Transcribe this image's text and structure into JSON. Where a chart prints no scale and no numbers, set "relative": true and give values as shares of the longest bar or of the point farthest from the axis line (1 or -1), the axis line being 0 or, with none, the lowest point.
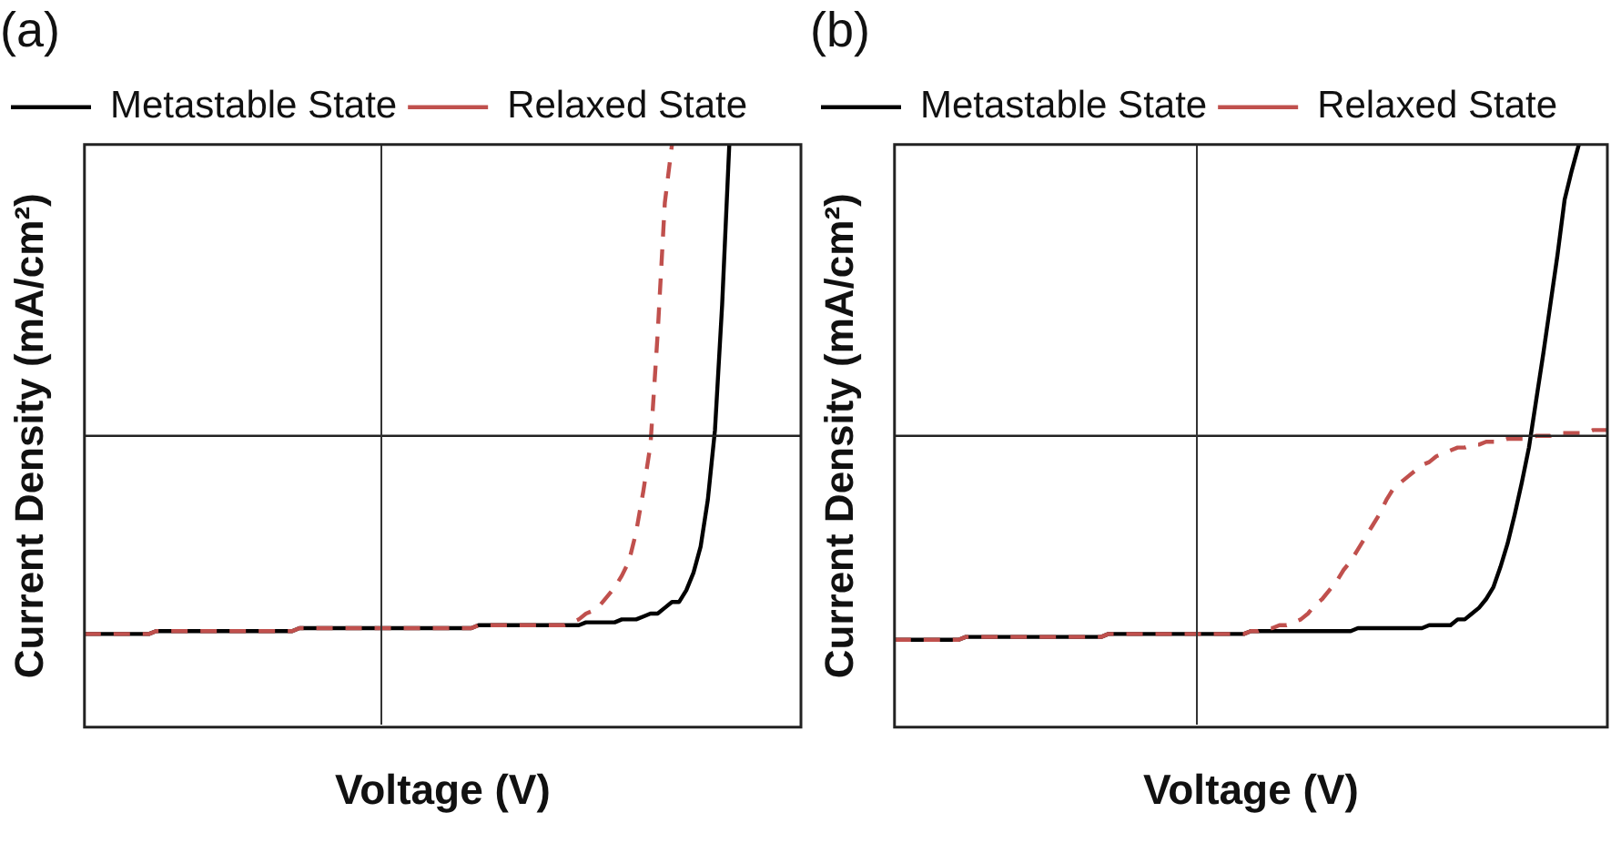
{
  "chart_data": [
    {
      "type": "line",
      "title": "(a)",
      "xlabel": "Voltage (V)",
      "ylabel": "Current Density (mA/cm²)",
      "relative": true,
      "legend": "top left",
      "grid": false,
      "ref_lines": [
        {
          "axis": "y",
          "value": 0
        }
      ],
      "categories": [
        null,
        null,
        null,
        null,
        null,
        null,
        null,
        null,
        null,
        null,
        null,
        null,
        null,
        null,
        null,
        null,
        null,
        null,
        null,
        null,
        null,
        null,
        null,
        null,
        null,
        null,
        null,
        null,
        null,
        null,
        null,
        null,
        null,
        null,
        null,
        null,
        null,
        null,
        null,
        null,
        null,
        null,
        null,
        null,
        null,
        null,
        null,
        null,
        null,
        null,
        null,
        null,
        null,
        null,
        null,
        null,
        null,
        null,
        null,
        null,
        null,
        null,
        null,
        null,
        null,
        null,
        null,
        null,
        null,
        null,
        null,
        null,
        null,
        null,
        null,
        null,
        null,
        null,
        null,
        null,
        null,
        null,
        null,
        null,
        null,
        null,
        null,
        null,
        null,
        null,
        null,
        null,
        null,
        null,
        null,
        null,
        null,
        null,
        null,
        null,
        null
      ],
      "series": [
        {
          "name": "Metastable State",
          "color": "#000000",
          "line_style": "solid",
          "values": [
            -0.68,
            -0.68,
            -0.68,
            -0.68,
            -0.68,
            -0.68,
            -0.68,
            -0.68,
            -0.68,
            -0.68,
            -0.67,
            -0.67,
            -0.67,
            -0.67,
            -0.67,
            -0.67,
            -0.67,
            -0.67,
            -0.67,
            -0.67,
            -0.67,
            -0.67,
            -0.67,
            -0.67,
            -0.67,
            -0.67,
            -0.67,
            -0.67,
            -0.67,
            -0.67,
            -0.66,
            -0.66,
            -0.66,
            -0.66,
            -0.66,
            -0.66,
            -0.66,
            -0.66,
            -0.66,
            -0.66,
            -0.66,
            -0.66,
            -0.66,
            -0.66,
            -0.66,
            -0.66,
            -0.66,
            -0.66,
            -0.66,
            -0.66,
            -0.66,
            -0.66,
            -0.66,
            -0.66,
            -0.66,
            -0.65,
            -0.65,
            -0.65,
            -0.65,
            -0.65,
            -0.65,
            -0.65,
            -0.65,
            -0.65,
            -0.65,
            -0.65,
            -0.65,
            -0.65,
            -0.65,
            -0.65,
            -0.64,
            -0.64,
            -0.64,
            -0.64,
            -0.64,
            -0.63,
            -0.63,
            -0.63,
            -0.62,
            -0.61,
            -0.61,
            -0.59,
            -0.57,
            -0.57,
            -0.53,
            -0.47,
            -0.38,
            -0.22,
            0.02,
            0.45,
            1,
            null,
            null,
            null,
            null,
            null,
            null,
            null,
            null,
            null,
            null
          ]
        },
        {
          "name": "Relaxed State",
          "color": "#c0504d",
          "line_style": "dashed",
          "values": [
            -0.68,
            -0.68,
            -0.68,
            -0.68,
            -0.68,
            -0.68,
            -0.68,
            -0.68,
            -0.68,
            -0.68,
            -0.67,
            -0.67,
            -0.67,
            -0.67,
            -0.67,
            -0.67,
            -0.67,
            -0.67,
            -0.67,
            -0.67,
            -0.67,
            -0.67,
            -0.67,
            -0.67,
            -0.67,
            -0.67,
            -0.67,
            -0.67,
            -0.67,
            -0.67,
            -0.66,
            -0.66,
            -0.66,
            -0.66,
            -0.66,
            -0.66,
            -0.66,
            -0.66,
            -0.66,
            -0.66,
            -0.66,
            -0.66,
            -0.66,
            -0.66,
            -0.66,
            -0.66,
            -0.66,
            -0.66,
            -0.66,
            -0.66,
            -0.66,
            -0.66,
            -0.66,
            -0.66,
            -0.66,
            -0.65,
            -0.65,
            -0.65,
            -0.65,
            -0.65,
            -0.65,
            -0.65,
            -0.65,
            -0.65,
            -0.65,
            -0.65,
            -0.65,
            -0.65,
            -0.64,
            -0.63,
            -0.61,
            -0.6,
            -0.58,
            -0.55,
            -0.52,
            -0.48,
            -0.43,
            -0.33,
            -0.19,
            -0.03,
            0.35,
            0.8,
            1,
            null,
            null,
            null,
            null,
            null,
            null,
            null,
            null,
            null,
            null,
            null,
            null,
            null,
            null,
            null,
            null,
            null,
            null
          ]
        }
      ]
    },
    {
      "type": "line",
      "title": "(b)",
      "xlabel": "Voltage (V)",
      "ylabel": "Current Density (mA/cm²)",
      "relative": true,
      "legend": "top left",
      "grid": false,
      "ref_lines": [
        {
          "axis": "y",
          "value": 0
        }
      ],
      "categories": [
        null,
        null,
        null,
        null,
        null,
        null,
        null,
        null,
        null,
        null,
        null,
        null,
        null,
        null,
        null,
        null,
        null,
        null,
        null,
        null,
        null,
        null,
        null,
        null,
        null,
        null,
        null,
        null,
        null,
        null,
        null,
        null,
        null,
        null,
        null,
        null,
        null,
        null,
        null,
        null,
        null,
        null,
        null,
        null,
        null,
        null,
        null,
        null,
        null,
        null,
        null,
        null,
        null,
        null,
        null,
        null,
        null,
        null,
        null,
        null,
        null,
        null,
        null,
        null,
        null,
        null,
        null,
        null,
        null,
        null,
        null,
        null,
        null,
        null,
        null,
        null,
        null,
        null,
        null,
        null,
        null,
        null,
        null,
        null,
        null,
        null,
        null,
        null,
        null,
        null,
        null,
        null,
        null,
        null,
        null,
        null,
        null,
        null,
        null,
        null,
        null
      ],
      "series": [
        {
          "name": "Metastable State",
          "color": "#000000",
          "line_style": "solid",
          "values": [
            -0.7,
            -0.7,
            -0.7,
            -0.7,
            -0.7,
            -0.7,
            -0.7,
            -0.7,
            -0.7,
            -0.7,
            -0.69,
            -0.69,
            -0.69,
            -0.69,
            -0.69,
            -0.69,
            -0.69,
            -0.69,
            -0.69,
            -0.69,
            -0.69,
            -0.69,
            -0.69,
            -0.69,
            -0.69,
            -0.69,
            -0.69,
            -0.69,
            -0.69,
            -0.69,
            -0.68,
            -0.68,
            -0.68,
            -0.68,
            -0.68,
            -0.68,
            -0.68,
            -0.68,
            -0.68,
            -0.68,
            -0.68,
            -0.68,
            -0.68,
            -0.68,
            -0.68,
            -0.68,
            -0.68,
            -0.68,
            -0.68,
            -0.68,
            -0.67,
            -0.67,
            -0.67,
            -0.67,
            -0.67,
            -0.67,
            -0.67,
            -0.67,
            -0.67,
            -0.67,
            -0.67,
            -0.67,
            -0.67,
            -0.67,
            -0.67,
            -0.66,
            -0.66,
            -0.66,
            -0.66,
            -0.66,
            -0.66,
            -0.66,
            -0.66,
            -0.66,
            -0.66,
            -0.65,
            -0.65,
            -0.65,
            -0.65,
            -0.63,
            -0.63,
            -0.61,
            -0.59,
            -0.56,
            -0.52,
            -0.45,
            -0.37,
            -0.27,
            -0.16,
            -0.04,
            0.12,
            0.28,
            0.45,
            0.62,
            0.81,
            0.91,
            1,
            null,
            null,
            null,
            null
          ]
        },
        {
          "name": "Relaxed State",
          "color": "#c0504d",
          "line_style": "dashed",
          "values": [
            -0.7,
            -0.7,
            -0.7,
            -0.7,
            -0.7,
            -0.7,
            -0.7,
            -0.7,
            -0.7,
            -0.7,
            -0.69,
            -0.69,
            -0.69,
            -0.69,
            -0.69,
            -0.69,
            -0.69,
            -0.69,
            -0.69,
            -0.69,
            -0.69,
            -0.69,
            -0.69,
            -0.69,
            -0.69,
            -0.69,
            -0.69,
            -0.69,
            -0.69,
            -0.69,
            -0.68,
            -0.68,
            -0.68,
            -0.68,
            -0.68,
            -0.68,
            -0.68,
            -0.68,
            -0.68,
            -0.68,
            -0.68,
            -0.68,
            -0.68,
            -0.68,
            -0.68,
            -0.68,
            -0.68,
            -0.68,
            -0.68,
            -0.68,
            -0.67,
            -0.67,
            -0.66,
            -0.66,
            -0.65,
            -0.65,
            -0.64,
            -0.63,
            -0.61,
            -0.58,
            -0.56,
            -0.53,
            -0.5,
            -0.46,
            -0.43,
            -0.39,
            -0.35,
            -0.31,
            -0.27,
            -0.22,
            -0.18,
            -0.16,
            -0.14,
            -0.12,
            -0.1,
            -0.09,
            -0.07,
            -0.06,
            -0.05,
            -0.04,
            -0.04,
            -0.03,
            -0.03,
            -0.02,
            -0.02,
            -0.02,
            -0.01,
            -0.01,
            -0.01,
            -0.01,
            0,
            0,
            0,
            0.01,
            0.01,
            0.01,
            0.01,
            0.01,
            0.02,
            0.02,
            0.02
          ]
        }
      ]
    }
  ]
}
